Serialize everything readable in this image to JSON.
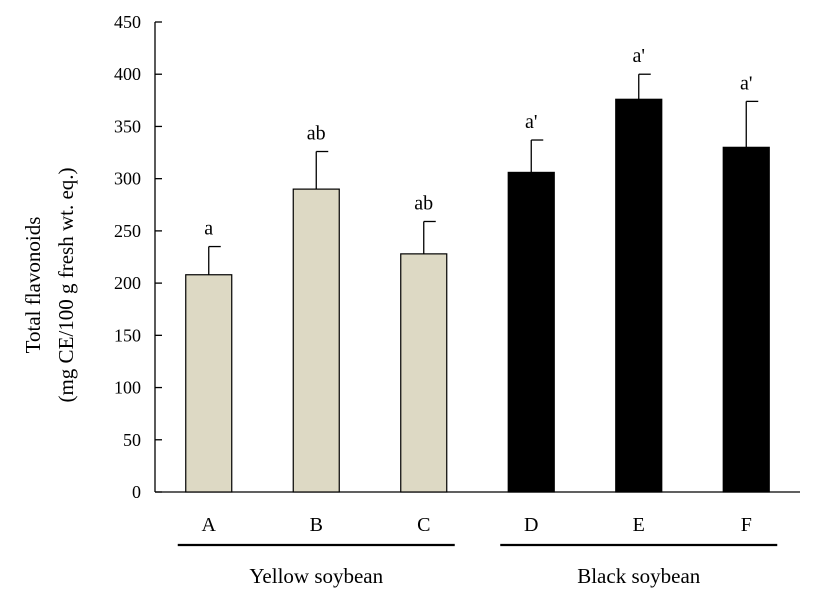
{
  "chart_data": {
    "type": "bar",
    "ylabel_line1": "Total flavonoids",
    "ylabel_line2": "(mg CE/100 g fresh wt. eq.)",
    "ylim": [
      0,
      450
    ],
    "yticks": [
      0,
      50,
      100,
      150,
      200,
      250,
      300,
      350,
      400,
      450
    ],
    "categories": [
      "A",
      "B",
      "C",
      "D",
      "E",
      "F"
    ],
    "values": [
      208,
      290,
      228,
      306,
      376,
      330
    ],
    "errors": [
      27,
      36,
      31,
      31,
      24,
      44
    ],
    "significance": [
      "a",
      "ab",
      "ab",
      "a'",
      "a'",
      "a'"
    ],
    "groups": [
      {
        "name": "Yellow soybean",
        "members": [
          0,
          1,
          2
        ],
        "color": "#ddd9c4"
      },
      {
        "name": "Black soybean",
        "members": [
          3,
          4,
          5
        ],
        "color": "#000000"
      }
    ],
    "grid": false,
    "legend": "none"
  }
}
